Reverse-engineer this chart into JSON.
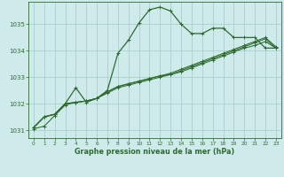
{
  "title": "Graphe pression niveau de la mer (hPa)",
  "bg_color": "#ceeaea",
  "grid_color": "#aacece",
  "line_color": "#2d6b2d",
  "xlim": [
    -0.5,
    23.5
  ],
  "ylim": [
    1030.7,
    1035.85
  ],
  "xticks": [
    0,
    1,
    2,
    3,
    4,
    5,
    6,
    7,
    8,
    9,
    10,
    11,
    12,
    13,
    14,
    15,
    16,
    17,
    18,
    19,
    20,
    21,
    22,
    23
  ],
  "yticks": [
    1031,
    1032,
    1033,
    1034,
    1035
  ],
  "series": [
    [
      1031.1,
      1031.5,
      1031.6,
      1032.0,
      1032.6,
      1032.05,
      1032.2,
      1032.5,
      1033.9,
      1034.4,
      1035.05,
      1035.55,
      1035.65,
      1035.5,
      1035.0,
      1034.65,
      1034.65,
      1034.85,
      1034.85,
      1034.5,
      1034.5,
      1034.5,
      1034.1,
      1034.1
    ],
    [
      1031.1,
      1031.5,
      1031.6,
      1032.0,
      1032.05,
      1032.1,
      1032.2,
      1032.45,
      1032.65,
      1032.75,
      1032.85,
      1032.95,
      1033.05,
      1033.1,
      1033.2,
      1033.35,
      1033.5,
      1033.65,
      1033.8,
      1033.95,
      1034.1,
      1034.2,
      1034.35,
      1034.1
    ],
    [
      1031.1,
      1031.5,
      1031.6,
      1032.0,
      1032.05,
      1032.1,
      1032.2,
      1032.45,
      1032.65,
      1032.75,
      1032.85,
      1032.95,
      1033.05,
      1033.15,
      1033.3,
      1033.45,
      1033.6,
      1033.75,
      1033.9,
      1034.05,
      1034.2,
      1034.35,
      1034.5,
      1034.15
    ],
    [
      1031.05,
      1031.15,
      1031.55,
      1031.95,
      1032.05,
      1032.1,
      1032.2,
      1032.4,
      1032.6,
      1032.7,
      1032.8,
      1032.9,
      1033.0,
      1033.1,
      1033.25,
      1033.4,
      1033.55,
      1033.7,
      1033.85,
      1034.0,
      1034.15,
      1034.3,
      1034.45,
      1034.1
    ]
  ]
}
